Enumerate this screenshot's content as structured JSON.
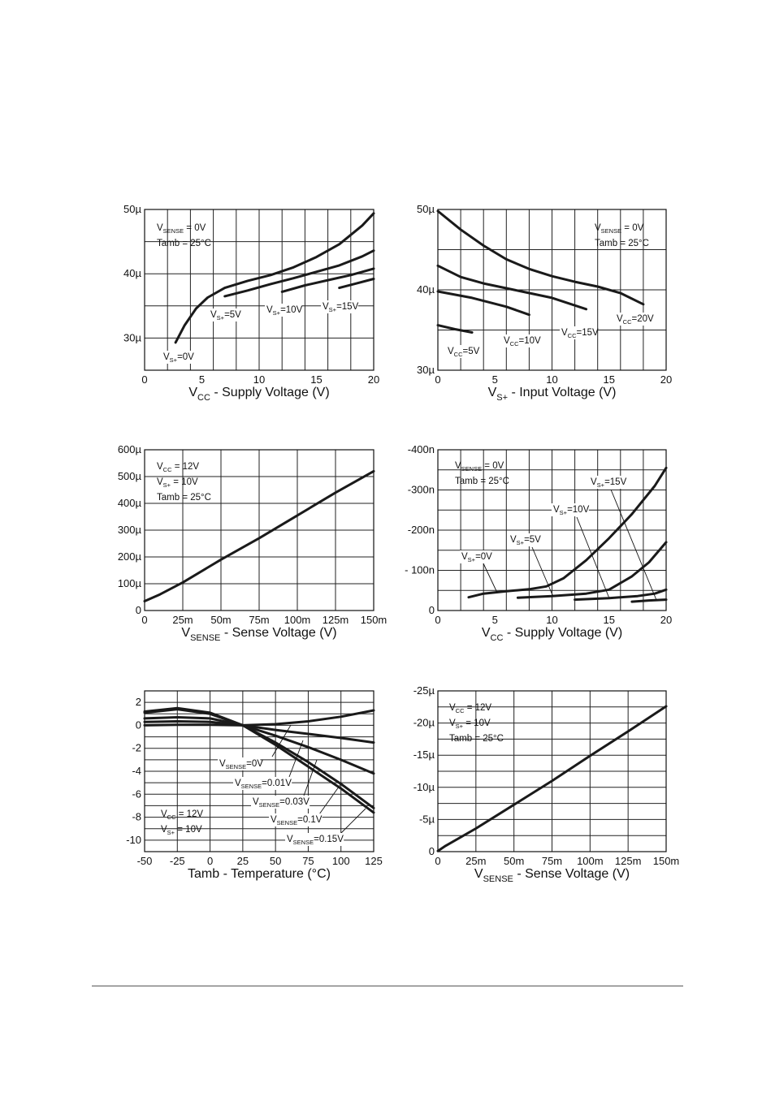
{
  "chart_data": [
    {
      "id": "c1",
      "type": "line",
      "xlabel": "- Supply Voltage (V)",
      "xlabel_main": "V",
      "xlabel_sub": "CC",
      "xlim": [
        0,
        20
      ],
      "ylim": [
        25,
        50
      ],
      "x_ticks": [
        "0",
        "5",
        "10",
        "15",
        "20"
      ],
      "y_ticks": [
        {
          "value": 30,
          "label": "30µ"
        },
        {
          "value": 40,
          "label": "40µ"
        },
        {
          "value": 50,
          "label": "50µ"
        }
      ],
      "conditions": [
        {
          "main": "V",
          "sub": "SENSE",
          "rest": " = 0V"
        },
        {
          "main": "Tamb = 25°C",
          "sub": "",
          "rest": ""
        }
      ],
      "series": [
        {
          "name": "VS+=0V",
          "label": {
            "main": "V",
            "sub": "S+",
            "rest": "=0V"
          },
          "points": [
            [
              2.7,
              29.3
            ],
            [
              3.5,
              32
            ],
            [
              4.5,
              34.6
            ],
            [
              5.5,
              36.3
            ],
            [
              7,
              37.8
            ],
            [
              9,
              38.9
            ],
            [
              11,
              39.8
            ],
            [
              13,
              41
            ],
            [
              15,
              42.6
            ],
            [
              17,
              44.6
            ],
            [
              19,
              47.5
            ],
            [
              20,
              49.4
            ]
          ]
        },
        {
          "name": "VS+=5V",
          "label": {
            "main": "V",
            "sub": "S+",
            "rest": "=5V"
          },
          "points": [
            [
              7,
              36.5
            ],
            [
              9,
              37.4
            ],
            [
              11,
              38.4
            ],
            [
              13,
              39.3
            ],
            [
              15,
              40.3
            ],
            [
              17,
              41.3
            ],
            [
              19,
              42.7
            ],
            [
              20,
              43.6
            ]
          ]
        },
        {
          "name": "VS+=10V",
          "label": {
            "main": "V",
            "sub": "S+",
            "rest": "=10V"
          },
          "points": [
            [
              12,
              37.2
            ],
            [
              14,
              38.2
            ],
            [
              16,
              39
            ],
            [
              18,
              39.8
            ],
            [
              20,
              40.8
            ]
          ]
        },
        {
          "name": "VS+=15V",
          "label": {
            "main": "V",
            "sub": "S+",
            "rest": "=15V"
          },
          "points": [
            [
              17,
              37.8
            ],
            [
              18.5,
              38.5
            ],
            [
              20,
              39.2
            ]
          ]
        }
      ]
    },
    {
      "id": "c2",
      "type": "line",
      "xlabel": "- Input Voltage (V)",
      "xlabel_main": "V",
      "xlabel_sub": "S+",
      "xlim": [
        0,
        20
      ],
      "ylim": [
        30,
        50
      ],
      "x_ticks": [
        "0",
        "5",
        "10",
        "15",
        "20"
      ],
      "y_ticks": [
        {
          "value": 30,
          "label": "30µ"
        },
        {
          "value": 40,
          "label": "40µ"
        },
        {
          "value": 50,
          "label": "50µ"
        }
      ],
      "conditions": [
        {
          "main": "V",
          "sub": "SENSE",
          "rest": " = 0V"
        },
        {
          "main": "Tamb = 25°C",
          "sub": "",
          "rest": ""
        }
      ],
      "series": [
        {
          "name": "VCC=20V",
          "label": {
            "main": "V",
            "sub": "CC",
            "rest": "=20V"
          },
          "points": [
            [
              0,
              49.8
            ],
            [
              2,
              47.5
            ],
            [
              4,
              45.5
            ],
            [
              6,
              43.8
            ],
            [
              8,
              42.6
            ],
            [
              10,
              41.7
            ],
            [
              12,
              41
            ],
            [
              14,
              40.4
            ],
            [
              16,
              39.6
            ],
            [
              18,
              38.2
            ]
          ]
        },
        {
          "name": "VCC=15V",
          "label": {
            "main": "V",
            "sub": "CC",
            "rest": "=15V"
          },
          "points": [
            [
              0,
              43
            ],
            [
              2,
              41.6
            ],
            [
              4,
              40.8
            ],
            [
              7,
              39.9
            ],
            [
              10,
              39
            ],
            [
              13,
              37.6
            ]
          ]
        },
        {
          "name": "VCC=10V",
          "label": {
            "main": "V",
            "sub": "CC",
            "rest": "=10V"
          },
          "points": [
            [
              0,
              39.8
            ],
            [
              3,
              39
            ],
            [
              6,
              37.9
            ],
            [
              8,
              36.9
            ]
          ]
        },
        {
          "name": "VCC=5V",
          "label": {
            "main": "V",
            "sub": "CC",
            "rest": "=5V"
          },
          "points": [
            [
              0,
              35.6
            ],
            [
              1.5,
              35.1
            ],
            [
              3,
              34.7
            ]
          ]
        }
      ]
    },
    {
      "id": "c3",
      "type": "line",
      "xlabel": "- Sense Voltage (V)",
      "xlabel_main": "V",
      "xlabel_sub": "SENSE",
      "xlim": [
        0,
        0.15
      ],
      "ylim": [
        0,
        600
      ],
      "x_ticks": [
        "0",
        "25m",
        "50m",
        "75m",
        "100m",
        "125m",
        "150m"
      ],
      "y_ticks": [
        {
          "value": 0,
          "label": "0"
        },
        {
          "value": 100,
          "label": "100µ"
        },
        {
          "value": 200,
          "label": "200µ"
        },
        {
          "value": 300,
          "label": "300µ"
        },
        {
          "value": 400,
          "label": "400µ"
        },
        {
          "value": 500,
          "label": "500µ"
        },
        {
          "value": 600,
          "label": "600µ"
        }
      ],
      "conditions": [
        {
          "main": "V",
          "sub": "CC",
          "rest": " = 12V"
        },
        {
          "main": "V",
          "sub": "S+",
          "rest": " = 10V"
        },
        {
          "main": "Tamb = 25°C",
          "sub": "",
          "rest": ""
        }
      ],
      "series": [
        {
          "points": [
            [
              0,
              35
            ],
            [
              0.01,
              60
            ],
            [
              0.025,
              105
            ],
            [
              0.05,
              190
            ],
            [
              0.075,
              270
            ],
            [
              0.1,
              355
            ],
            [
              0.125,
              440
            ],
            [
              0.15,
              520
            ]
          ]
        }
      ]
    },
    {
      "id": "c4",
      "type": "line",
      "xlabel": "- Supply Voltage (V)",
      "xlabel_main": "V",
      "xlabel_sub": "CC",
      "xlim": [
        0,
        20
      ],
      "ylim": [
        0,
        -400
      ],
      "x_ticks": [
        "0",
        "5",
        "10",
        "15",
        "20"
      ],
      "y_ticks": [
        {
          "value": 0,
          "label": "0"
        },
        {
          "value": -100,
          "label": "- 100n"
        },
        {
          "value": -200,
          "label": "-200n"
        },
        {
          "value": -300,
          "label": "-300n"
        },
        {
          "value": -400,
          "label": "-400n"
        }
      ],
      "conditions": [
        {
          "main": "V",
          "sub": "SENSE",
          "rest": " = 0V"
        },
        {
          "main": "Tamb = 25°C",
          "sub": "",
          "rest": ""
        }
      ],
      "series": [
        {
          "name": "VS+=0V",
          "label": {
            "main": "V",
            "sub": "S+",
            "rest": "=0V"
          },
          "points": [
            [
              2.7,
              -33
            ],
            [
              4,
              -42
            ],
            [
              6,
              -48
            ],
            [
              8,
              -53
            ],
            [
              9.5,
              -60
            ],
            [
              11,
              -80
            ],
            [
              13,
              -125
            ],
            [
              15,
              -180
            ],
            [
              17,
              -240
            ],
            [
              19,
              -310
            ],
            [
              20,
              -355
            ]
          ]
        },
        {
          "name": "VS+=5V",
          "label": {
            "main": "V",
            "sub": "S+",
            "rest": "=5V"
          },
          "points": [
            [
              7,
              -32
            ],
            [
              10,
              -36
            ],
            [
              13,
              -42
            ],
            [
              15,
              -52
            ],
            [
              17,
              -85
            ],
            [
              18.5,
              -120
            ],
            [
              20,
              -170
            ]
          ]
        },
        {
          "name": "VS+=10V",
          "label": {
            "main": "V",
            "sub": "S+",
            "rest": "=10V"
          },
          "points": [
            [
              12,
              -27
            ],
            [
              15,
              -31
            ],
            [
              17.5,
              -36
            ],
            [
              19,
              -42
            ],
            [
              20,
              -52
            ]
          ]
        },
        {
          "name": "VS+=15V",
          "label": {
            "main": "V",
            "sub": "S+",
            "rest": "=15V"
          },
          "points": [
            [
              17,
              -22
            ],
            [
              18.5,
              -25
            ],
            [
              20,
              -27
            ]
          ]
        }
      ]
    },
    {
      "id": "c5",
      "type": "line",
      "xlabel": "Tamb - Temperature (°C)",
      "xlabel_main": "",
      "xlabel_sub": "",
      "xlim": [
        -50,
        125
      ],
      "ylim": [
        -11,
        3
      ],
      "x_ticks": [
        "-50",
        "-25",
        "0",
        "25",
        "50",
        "75",
        "100",
        "125"
      ],
      "y_ticks": [
        {
          "value": 2,
          "label": "2"
        },
        {
          "value": 0,
          "label": "0"
        },
        {
          "value": -2,
          "label": "-2"
        },
        {
          "value": -4,
          "label": "-4"
        },
        {
          "value": -6,
          "label": "-6"
        },
        {
          "value": -8,
          "label": "-8"
        },
        {
          "value": -10,
          "label": "-10"
        }
      ],
      "conditions": [
        {
          "main": "V",
          "sub": "CC",
          "rest": " = 12V"
        },
        {
          "main": "V",
          "sub": "S+",
          "rest": " = 10V"
        }
      ],
      "series": [
        {
          "name": "VSENSE=0V",
          "label": {
            "main": "V",
            "sub": "SENSE",
            "rest": "=0V"
          },
          "points": [
            [
              -50,
              0
            ],
            [
              -25,
              0.05
            ],
            [
              0,
              0.05
            ],
            [
              25,
              0
            ],
            [
              50,
              0.1
            ],
            [
              75,
              0.35
            ],
            [
              100,
              0.75
            ],
            [
              125,
              1.3
            ]
          ]
        },
        {
          "name": "VSENSE=0.01V",
          "label": {
            "main": "V",
            "sub": "SENSE",
            "rest": "=0.01V"
          },
          "points": [
            [
              -50,
              0.3
            ],
            [
              -25,
              0.35
            ],
            [
              0,
              0.3
            ],
            [
              25,
              0
            ],
            [
              50,
              -0.4
            ],
            [
              75,
              -0.75
            ],
            [
              100,
              -1.1
            ],
            [
              125,
              -1.5
            ]
          ]
        },
        {
          "name": "VSENSE=0.03V",
          "label": {
            "main": "V",
            "sub": "SENSE",
            "rest": "=0.03V"
          },
          "points": [
            [
              -50,
              0.6
            ],
            [
              -25,
              0.7
            ],
            [
              0,
              0.6
            ],
            [
              25,
              0
            ],
            [
              50,
              -0.9
            ],
            [
              75,
              -1.9
            ],
            [
              100,
              -3
            ],
            [
              125,
              -4.2
            ]
          ]
        },
        {
          "name": "VSENSE=0.1V",
          "label": {
            "main": "V",
            "sub": "SENSE",
            "rest": "=0.1V"
          },
          "points": [
            [
              -50,
              1.1
            ],
            [
              -25,
              1.4
            ],
            [
              0,
              1
            ],
            [
              25,
              0
            ],
            [
              50,
              -1.5
            ],
            [
              75,
              -3.2
            ],
            [
              100,
              -5.1
            ],
            [
              125,
              -7.2
            ]
          ]
        },
        {
          "name": "VSENSE=0.15V",
          "label": {
            "main": "V",
            "sub": "SENSE",
            "rest": "=0.15V"
          },
          "points": [
            [
              -50,
              1.2
            ],
            [
              -25,
              1.5
            ],
            [
              0,
              1.1
            ],
            [
              25,
              0
            ],
            [
              50,
              -1.7
            ],
            [
              75,
              -3.6
            ],
            [
              100,
              -5.5
            ],
            [
              125,
              -7.6
            ]
          ]
        }
      ]
    },
    {
      "id": "c6",
      "type": "line",
      "xlabel": "- Sense Voltage (V)",
      "xlabel_main": "V",
      "xlabel_sub": "SENSE",
      "xlim": [
        0,
        0.15
      ],
      "ylim": [
        0,
        -25
      ],
      "x_ticks": [
        "0",
        "25m",
        "50m",
        "75m",
        "100m",
        "125m",
        "150m"
      ],
      "y_ticks": [
        {
          "value": 0,
          "label": "0"
        },
        {
          "value": -5,
          "label": "-5µ"
        },
        {
          "value": -10,
          "label": "-10µ"
        },
        {
          "value": -15,
          "label": "-15µ"
        },
        {
          "value": -20,
          "label": "-20µ"
        },
        {
          "value": -25,
          "label": "-25µ"
        }
      ],
      "conditions": [
        {
          "main": "V",
          "sub": "CC",
          "rest": " = 12V"
        },
        {
          "main": "V",
          "sub": "S+",
          "rest": " = 10V"
        },
        {
          "main": "Tamb = 25°C",
          "sub": "",
          "rest": ""
        }
      ],
      "series": [
        {
          "points": [
            [
              0,
              -0.1
            ],
            [
              0.005,
              -0.9
            ],
            [
              0.025,
              -3.6
            ],
            [
              0.05,
              -7.3
            ],
            [
              0.075,
              -11
            ],
            [
              0.1,
              -14.9
            ],
            [
              0.125,
              -18.7
            ],
            [
              0.15,
              -22.6
            ]
          ]
        }
      ]
    }
  ]
}
